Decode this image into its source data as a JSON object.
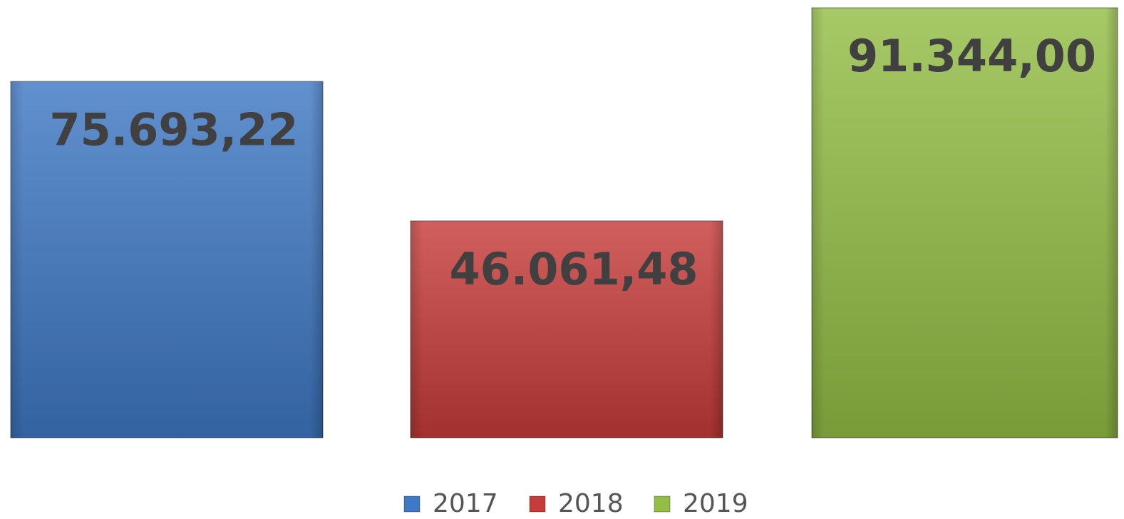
{
  "chart_data": {
    "type": "bar",
    "series": [
      {
        "name": "2017",
        "color": "#3f78c4",
        "values": [
          75693.22
        ],
        "value_labels": [
          "75.693,22"
        ]
      },
      {
        "name": "2018",
        "color": "#c63c3a",
        "values": [
          46061.48
        ],
        "value_labels": [
          "46.061,48"
        ]
      },
      {
        "name": "2019",
        "color": "#93bd45",
        "values": [
          91344.0
        ],
        "value_labels": [
          "91.344,00"
        ]
      }
    ],
    "legend": "bottom"
  }
}
